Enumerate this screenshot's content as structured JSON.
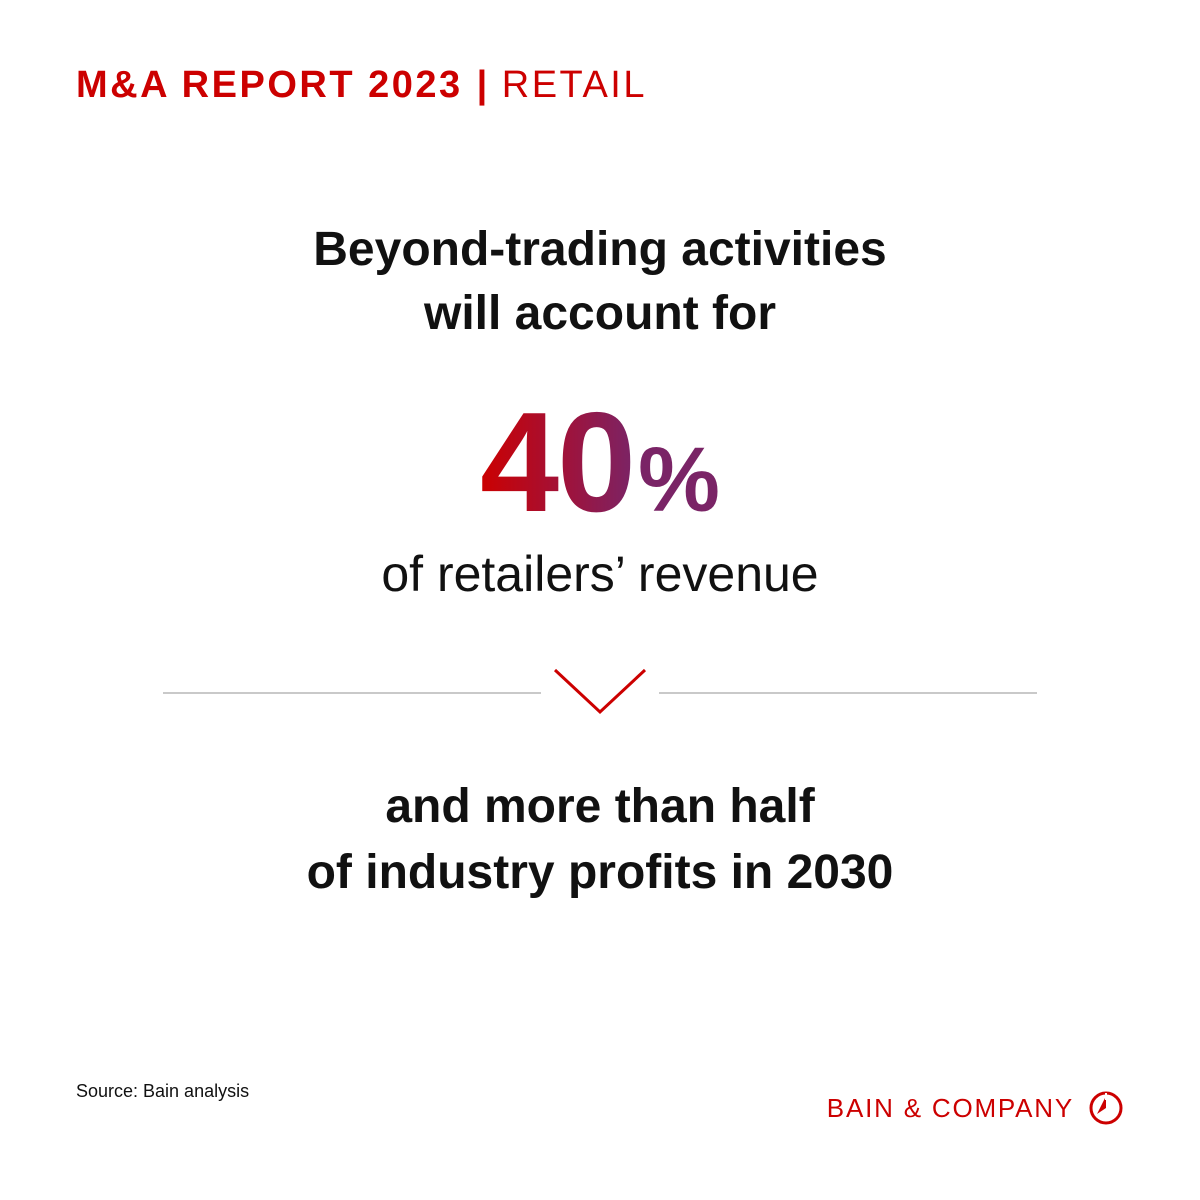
{
  "header": {
    "report": "M&A REPORT 2023",
    "separator": "|",
    "topic": "RETAIL"
  },
  "headline": {
    "line1": "Beyond-trading activities",
    "line2": "will account for"
  },
  "stat": {
    "value": "40",
    "unit": "%"
  },
  "subline": "of retailers’ revenue",
  "divider": {
    "icon": "chevron-down-icon"
  },
  "closing": {
    "line1": "and more than half",
    "line2": "of industry profits in 2030"
  },
  "source": "Source: Bain analysis",
  "brand": {
    "name": "BAIN & COMPANY",
    "icon": "bain-logo-icon"
  },
  "colors": {
    "brand_red": "#cc0000",
    "gradient_end": "#7a2466",
    "text": "#111111",
    "divider": "#c9c9c9"
  }
}
